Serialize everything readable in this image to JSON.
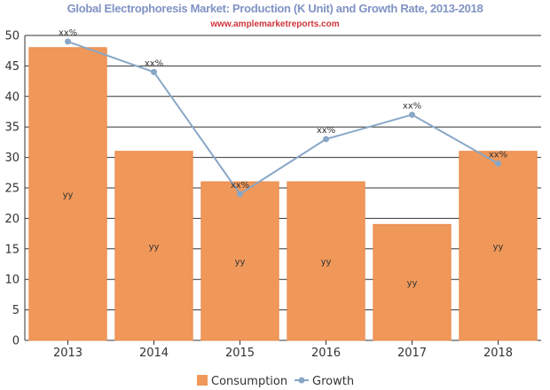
{
  "chart_data": {
    "type": "bar",
    "title": "Global Electrophoresis Market: Production (K Unit) and Growth Rate, 2013-2018",
    "subtitle": "www.amplemarketreports.com",
    "categories": [
      "2013",
      "2014",
      "2015",
      "2016",
      "2017",
      "2018"
    ],
    "series": [
      {
        "name": "Consumption",
        "type": "bar",
        "values": [
          48,
          31,
          26,
          26,
          19,
          31
        ],
        "labels": [
          "yy",
          "yy",
          "yy",
          "yy",
          "yy",
          "yy"
        ]
      },
      {
        "name": "Growth",
        "type": "line",
        "values": [
          49,
          44,
          24,
          33,
          37,
          29
        ],
        "labels": [
          "xx%",
          "xx%",
          "xx%",
          "xx%",
          "xx%",
          "xx%"
        ]
      }
    ],
    "ylim": [
      0,
      50
    ],
    "yticks": [
      0,
      5,
      10,
      15,
      20,
      25,
      30,
      35,
      40,
      45,
      50
    ],
    "grid": true,
    "legend_position": "bottom-center",
    "colors": {
      "bar": "#f0985a",
      "bar_edge": "#e8894a",
      "line": "#89a7c7",
      "grid": "#333333"
    }
  }
}
